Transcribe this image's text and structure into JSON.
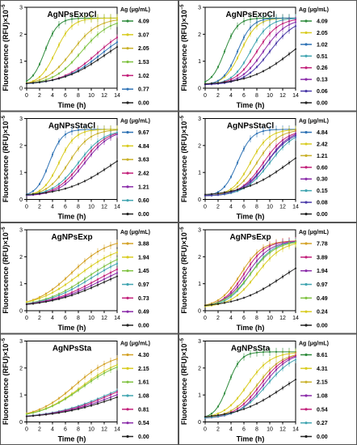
{
  "figure": {
    "ylabel": "Fluorescence (RFU)×10",
    "ylabel_exp": "−5",
    "xlabel": "Time (h)",
    "legend_title": "Ag (μg/mL)",
    "colors": [
      "#d9cc22",
      "#d4a227",
      "#41a5b1",
      "#8a2ba9",
      "#c2207a",
      "#7fc241",
      "#2f73b5",
      "#222222"
    ]
  },
  "chart_data": [
    {
      "type": "line",
      "title": "AgNPsExpCl",
      "x": [
        0,
        0.5,
        1,
        1.5,
        2,
        2.5,
        3,
        3.5,
        4,
        4.5,
        5,
        5.5,
        6,
        6.5,
        7,
        7.5,
        8,
        8.5,
        9,
        9.5,
        10,
        10.5,
        11,
        11.5,
        12,
        12.5,
        13,
        13.5,
        14
      ],
      "xlim": [
        0,
        14
      ],
      "ylim": [
        0,
        3
      ],
      "xticks": [
        0,
        2,
        4,
        6,
        8,
        10,
        12,
        14
      ],
      "yticks": [
        0,
        1,
        2,
        3
      ],
      "legend": [
        "4.09",
        "3.07",
        "2.05",
        "1.53",
        "1.02",
        "0.77",
        "0.00"
      ],
      "series": [
        {
          "label": "4.09",
          "color": "#2e8b3c",
          "plateau": 2.6,
          "midpoint": 2.8,
          "rate": 1.0
        },
        {
          "label": "3.07",
          "color": "#d9cc22",
          "plateau": 2.6,
          "midpoint": 4.5,
          "rate": 0.8
        },
        {
          "label": "2.05",
          "color": "#c9b12a",
          "plateau": 2.6,
          "midpoint": 7.0,
          "rate": 0.5
        },
        {
          "label": "1.53",
          "color": "#7fc241",
          "plateau": 2.6,
          "midpoint": 8.5,
          "rate": 0.45
        },
        {
          "label": "1.02",
          "color": "#c2207a",
          "plateau": 2.5,
          "midpoint": 11.0,
          "rate": 0.35
        },
        {
          "label": "0.77",
          "color": "#2f73b5",
          "plateau": 2.4,
          "midpoint": 11.5,
          "rate": 0.33
        },
        {
          "label": "0.00",
          "color": "#222222",
          "plateau": 2.3,
          "midpoint": 12.0,
          "rate": 0.3
        }
      ]
    },
    {
      "type": "line",
      "title": "AgNPsExpCl",
      "x": [
        0,
        0.5,
        1,
        1.5,
        2,
        2.5,
        3,
        3.5,
        4,
        4.5,
        5,
        5.5,
        6,
        6.5,
        7,
        7.5,
        8,
        8.5,
        9,
        9.5,
        10,
        10.5,
        11,
        11.5,
        12,
        12.5,
        13,
        13.5,
        14
      ],
      "xlim": [
        0,
        14
      ],
      "ylim": [
        0,
        3
      ],
      "xticks": [
        0,
        2,
        4,
        6,
        8,
        10,
        12,
        14
      ],
      "yticks": [
        0,
        1,
        2,
        3
      ],
      "legend": [
        "4.09",
        "2.05",
        "1.02",
        "0.51",
        "0.26",
        "0.13",
        "0.06",
        "0.00"
      ],
      "series": [
        {
          "label": "4.09",
          "color": "#2e8b3c",
          "plateau": 2.6,
          "midpoint": 3.0,
          "rate": 1.0
        },
        {
          "label": "2.05",
          "color": "#d9cc22",
          "plateau": 2.6,
          "midpoint": 5.5,
          "rate": 0.8
        },
        {
          "label": "1.02",
          "color": "#2f73b5",
          "plateau": 2.6,
          "midpoint": 5.0,
          "rate": 0.9
        },
        {
          "label": "0.51",
          "color": "#41a5b1",
          "plateau": 2.6,
          "midpoint": 7.0,
          "rate": 0.7
        },
        {
          "label": "0.26",
          "color": "#c2207a",
          "plateau": 2.6,
          "midpoint": 8.0,
          "rate": 0.6
        },
        {
          "label": "0.13",
          "color": "#8a2ba9",
          "plateau": 2.6,
          "midpoint": 9.0,
          "rate": 0.55
        },
        {
          "label": "0.06",
          "color": "#4a3aa8",
          "plateau": 2.6,
          "midpoint": 10.0,
          "rate": 0.5
        },
        {
          "label": "0.00",
          "color": "#222222",
          "plateau": 2.6,
          "midpoint": 13.5,
          "rate": 0.3
        }
      ]
    },
    {
      "type": "line",
      "title": "AgNPsStaCl",
      "x": [
        0,
        0.5,
        1,
        1.5,
        2,
        2.5,
        3,
        3.5,
        4,
        4.5,
        5,
        5.5,
        6,
        6.5,
        7,
        7.5,
        8,
        8.5,
        9,
        9.5,
        10,
        10.5,
        11,
        11.5,
        12,
        12.5,
        13,
        13.5,
        14
      ],
      "xlim": [
        0,
        14
      ],
      "ylim": [
        0,
        3
      ],
      "xticks": [
        0,
        2,
        4,
        6,
        8,
        10,
        12,
        14
      ],
      "yticks": [
        0,
        1,
        2,
        3
      ],
      "legend": [
        "9.67",
        "4.84",
        "3.63",
        "2.42",
        "1.21",
        "0.60",
        "0.00"
      ],
      "series": [
        {
          "label": "9.67",
          "color": "#2f73b5",
          "plateau": 2.6,
          "midpoint": 3.5,
          "rate": 1.0
        },
        {
          "label": "4.84",
          "color": "#d9cc22",
          "plateau": 2.6,
          "midpoint": 5.0,
          "rate": 0.8
        },
        {
          "label": "3.63",
          "color": "#c9b12a",
          "plateau": 2.6,
          "midpoint": 6.5,
          "rate": 0.6
        },
        {
          "label": "2.42",
          "color": "#c2207a",
          "plateau": 2.6,
          "midpoint": 8.5,
          "rate": 0.5
        },
        {
          "label": "1.21",
          "color": "#8a2ba9",
          "plateau": 2.6,
          "midpoint": 9.0,
          "rate": 0.5
        },
        {
          "label": "0.60",
          "color": "#41a5b1",
          "plateau": 2.6,
          "midpoint": 8.0,
          "rate": 0.5
        },
        {
          "label": "0.00",
          "color": "#222222",
          "plateau": 2.4,
          "midpoint": 13.0,
          "rate": 0.28
        }
      ]
    },
    {
      "type": "line",
      "title": "AgNPsStaCl",
      "x": [
        0,
        0.5,
        1,
        1.5,
        2,
        2.5,
        3,
        3.5,
        4,
        4.5,
        5,
        5.5,
        6,
        6.5,
        7,
        7.5,
        8,
        8.5,
        9,
        9.5,
        10,
        10.5,
        11,
        11.5,
        12,
        12.5,
        13,
        13.5,
        14
      ],
      "xlim": [
        0,
        14
      ],
      "ylim": [
        0,
        3
      ],
      "xticks": [
        0,
        2,
        4,
        6,
        8,
        10,
        12,
        14
      ],
      "yticks": [
        0,
        1,
        2,
        3
      ],
      "legend": [
        "4.84",
        "2.42",
        "1.21",
        "0.60",
        "0.30",
        "0.15",
        "0.08",
        "0.00"
      ],
      "series": [
        {
          "label": "4.84",
          "color": "#2f73b5",
          "plateau": 2.6,
          "midpoint": 5.0,
          "rate": 0.9
        },
        {
          "label": "2.42",
          "color": "#d9cc22",
          "plateau": 2.6,
          "midpoint": 7.0,
          "rate": 0.7
        },
        {
          "label": "1.21",
          "color": "#c9b12a",
          "plateau": 2.6,
          "midpoint": 8.0,
          "rate": 0.6
        },
        {
          "label": "0.60",
          "color": "#c2207a",
          "plateau": 2.6,
          "midpoint": 9.0,
          "rate": 0.55
        },
        {
          "label": "0.30",
          "color": "#8a2ba9",
          "plateau": 2.6,
          "midpoint": 9.5,
          "rate": 0.55
        },
        {
          "label": "0.15",
          "color": "#41a5b1",
          "plateau": 2.6,
          "midpoint": 10.0,
          "rate": 0.5
        },
        {
          "label": "0.08",
          "color": "#4a3aa8",
          "plateau": 2.6,
          "midpoint": 9.5,
          "rate": 0.5
        },
        {
          "label": "0.00",
          "color": "#222222",
          "plateau": 2.6,
          "midpoint": 13.0,
          "rate": 0.28
        }
      ]
    },
    {
      "type": "line",
      "title": "AgNPsExp",
      "x": [
        0,
        0.5,
        1,
        1.5,
        2,
        2.5,
        3,
        3.5,
        4,
        4.5,
        5,
        5.5,
        6,
        6.5,
        7,
        7.5,
        8,
        8.5,
        9,
        9.5,
        10,
        10.5,
        11,
        11.5,
        12,
        12.5,
        13,
        13.5,
        14
      ],
      "xlim": [
        0,
        14
      ],
      "ylim": [
        0,
        3
      ],
      "xticks": [
        0,
        2,
        4,
        6,
        8,
        10,
        12,
        14
      ],
      "yticks": [
        0,
        1,
        2,
        3
      ],
      "legend": [
        "3.88",
        "1.94",
        "1.45",
        "0.97",
        "0.73",
        "0.49",
        "0.00"
      ],
      "series": [
        {
          "label": "3.88",
          "color": "#d4a227",
          "plateau": 2.7,
          "midpoint": 7.0,
          "rate": 0.35
        },
        {
          "label": "1.94",
          "color": "#d9cc22",
          "plateau": 2.5,
          "midpoint": 8.0,
          "rate": 0.3
        },
        {
          "label": "1.45",
          "color": "#7fc241",
          "plateau": 2.4,
          "midpoint": 9.5,
          "rate": 0.28
        },
        {
          "label": "0.97",
          "color": "#41a5b1",
          "plateau": 2.3,
          "midpoint": 10.0,
          "rate": 0.27
        },
        {
          "label": "0.73",
          "color": "#c2207a",
          "plateau": 2.2,
          "midpoint": 11.0,
          "rate": 0.25
        },
        {
          "label": "0.49",
          "color": "#8a2ba9",
          "plateau": 2.1,
          "midpoint": 11.5,
          "rate": 0.24
        },
        {
          "label": "0.00",
          "color": "#222222",
          "plateau": 2.0,
          "midpoint": 12.0,
          "rate": 0.23
        }
      ]
    },
    {
      "type": "line",
      "title": "AgNPsExp",
      "x": [
        0,
        0.5,
        1,
        1.5,
        2,
        2.5,
        3,
        3.5,
        4,
        4.5,
        5,
        5.5,
        6,
        6.5,
        7,
        7.5,
        8,
        8.5,
        9,
        9.5,
        10,
        10.5,
        11,
        11.5,
        12,
        12.5,
        13,
        13.5,
        14
      ],
      "xlim": [
        0,
        14
      ],
      "ylim": [
        0,
        3
      ],
      "xticks": [
        0,
        2,
        4,
        6,
        8,
        10,
        12,
        14
      ],
      "yticks": [
        0,
        1,
        2,
        3
      ],
      "legend": [
        "7.78",
        "3.89",
        "1.94",
        "0.97",
        "0.49",
        "0.24",
        "0.00"
      ],
      "series": [
        {
          "label": "7.78",
          "color": "#d4a227",
          "plateau": 2.6,
          "midpoint": 5.5,
          "rate": 0.6
        },
        {
          "label": "3.89",
          "color": "#c2207a",
          "plateau": 2.6,
          "midpoint": 6.0,
          "rate": 0.6
        },
        {
          "label": "1.94",
          "color": "#8a2ba9",
          "plateau": 2.6,
          "midpoint": 6.5,
          "rate": 0.55
        },
        {
          "label": "0.97",
          "color": "#41a5b1",
          "plateau": 2.6,
          "midpoint": 7.0,
          "rate": 0.55
        },
        {
          "label": "0.49",
          "color": "#7fc241",
          "plateau": 2.6,
          "midpoint": 7.0,
          "rate": 0.5
        },
        {
          "label": "0.24",
          "color": "#d9cc22",
          "plateau": 2.6,
          "midpoint": 8.0,
          "rate": 0.5
        },
        {
          "label": "0.00",
          "color": "#222222",
          "plateau": 2.4,
          "midpoint": 12.0,
          "rate": 0.28
        }
      ]
    },
    {
      "type": "line",
      "title": "AgNPsSta",
      "x": [
        0,
        0.5,
        1,
        1.5,
        2,
        2.5,
        3,
        3.5,
        4,
        4.5,
        5,
        5.5,
        6,
        6.5,
        7,
        7.5,
        8,
        8.5,
        9,
        9.5,
        10,
        10.5,
        11,
        11.5,
        12,
        12.5,
        13,
        13.5,
        14
      ],
      "xlim": [
        0,
        14
      ],
      "ylim": [
        0,
        3
      ],
      "xticks": [
        0,
        2,
        4,
        6,
        8,
        10,
        12,
        14
      ],
      "yticks": [
        0,
        1,
        2,
        3
      ],
      "legend": [
        "4.30",
        "2.15",
        "1.61",
        "1.08",
        "0.81",
        "0.54",
        "0.00"
      ],
      "series": [
        {
          "label": "4.30",
          "color": "#d4a227",
          "plateau": 2.6,
          "midpoint": 7.5,
          "rate": 0.33
        },
        {
          "label": "2.15",
          "color": "#d9cc22",
          "plateau": 2.5,
          "midpoint": 8.5,
          "rate": 0.3
        },
        {
          "label": "1.61",
          "color": "#7fc241",
          "plateau": 2.4,
          "midpoint": 8.5,
          "rate": 0.3
        },
        {
          "label": "1.08",
          "color": "#41a5b1",
          "plateau": 2.0,
          "midpoint": 13.0,
          "rate": 0.22
        },
        {
          "label": "0.81",
          "color": "#c2207a",
          "plateau": 2.0,
          "midpoint": 13.5,
          "rate": 0.22
        },
        {
          "label": "0.54",
          "color": "#8a2ba9",
          "plateau": 1.9,
          "midpoint": 14.0,
          "rate": 0.21
        },
        {
          "label": "0.00",
          "color": "#222222",
          "plateau": 1.8,
          "midpoint": 14.5,
          "rate": 0.2
        }
      ]
    },
    {
      "type": "line",
      "title": "AgNPsSta",
      "x": [
        0,
        0.5,
        1,
        1.5,
        2,
        2.5,
        3,
        3.5,
        4,
        4.5,
        5,
        5.5,
        6,
        6.5,
        7,
        7.5,
        8,
        8.5,
        9,
        9.5,
        10,
        10.5,
        11,
        11.5,
        12,
        12.5,
        13,
        13.5,
        14
      ],
      "xlim": [
        0,
        14
      ],
      "ylim": [
        0,
        3
      ],
      "xticks": [
        0,
        2,
        4,
        6,
        8,
        10,
        12,
        14
      ],
      "yticks": [
        0,
        1,
        2,
        3
      ],
      "legend": [
        "8.61",
        "4.31",
        "2.15",
        "1.08",
        "0.54",
        "0.27",
        "0.00"
      ],
      "series": [
        {
          "label": "8.61",
          "color": "#2e8b3c",
          "plateau": 2.6,
          "midpoint": 3.5,
          "rate": 1.0
        },
        {
          "label": "4.31",
          "color": "#d9cc22",
          "plateau": 2.6,
          "midpoint": 6.5,
          "rate": 0.55
        },
        {
          "label": "2.15",
          "color": "#c9b12a",
          "plateau": 2.6,
          "midpoint": 8.0,
          "rate": 0.5
        },
        {
          "label": "1.08",
          "color": "#8a2ba9",
          "plateau": 2.6,
          "midpoint": 9.0,
          "rate": 0.5
        },
        {
          "label": "0.54",
          "color": "#c2207a",
          "plateau": 2.6,
          "midpoint": 8.5,
          "rate": 0.5
        },
        {
          "label": "0.27",
          "color": "#41a5b1",
          "plateau": 2.6,
          "midpoint": 9.5,
          "rate": 0.45
        },
        {
          "label": "0.00",
          "color": "#222222",
          "plateau": 2.4,
          "midpoint": 12.0,
          "rate": 0.28
        }
      ]
    }
  ]
}
